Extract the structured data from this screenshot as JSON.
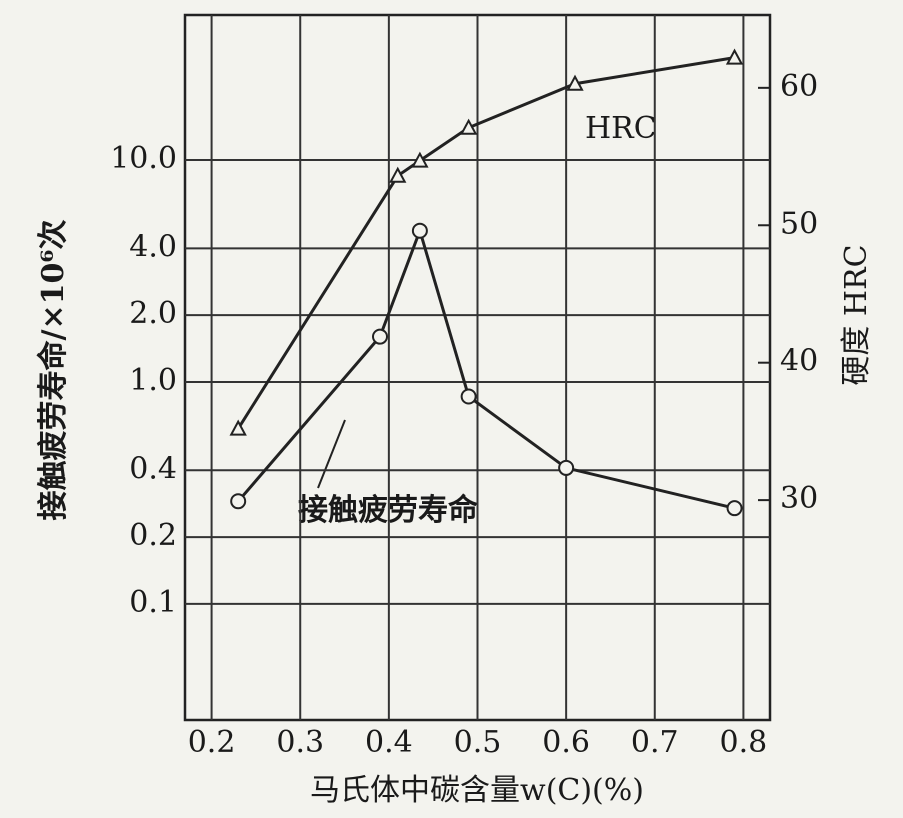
{
  "chart_data": {
    "type": "line",
    "x_label": "马氏体中碳含量w(C)(%)",
    "y_label": "接触疲劳寿命/×10⁶次",
    "y2_label": "硬度 HRC",
    "annotations": [
      "HRC",
      "接触疲劳寿命"
    ],
    "xlim": [
      0.17,
      0.83
    ],
    "xticks": [
      0.2,
      0.3,
      0.4,
      0.5,
      0.6,
      0.7,
      0.8
    ],
    "ylim": [
      0.03,
      45
    ],
    "ylog": true,
    "yticks": [
      0.1,
      0.2,
      0.4,
      {
        "value": 1,
        "label": "1.0"
      },
      {
        "value": 2,
        "label": "2.0"
      },
      {
        "value": 4,
        "label": "4.0"
      },
      {
        "value": 10,
        "label": "10.0"
      }
    ],
    "y2lim": [
      14,
      65.3
    ],
    "y2ticks": [
      30,
      40,
      50,
      60
    ],
    "grid": true,
    "series": [
      {
        "name": "HRC",
        "axis": "y2",
        "marker": "triangle",
        "color": "#222222",
        "x": [
          0.23,
          0.41,
          0.435,
          0.49,
          0.61,
          0.79
        ],
        "values": [
          35.2,
          53.6,
          54.7,
          57.1,
          60.3,
          62.2
        ]
      },
      {
        "name": "接触疲劳寿命",
        "axis": "y",
        "marker": "circle",
        "color": "#222222",
        "x": [
          0.23,
          0.39,
          0.435,
          0.49,
          0.6,
          0.79
        ],
        "values": [
          0.29,
          1.6,
          4.8,
          0.86,
          0.41,
          0.27
        ]
      }
    ]
  }
}
